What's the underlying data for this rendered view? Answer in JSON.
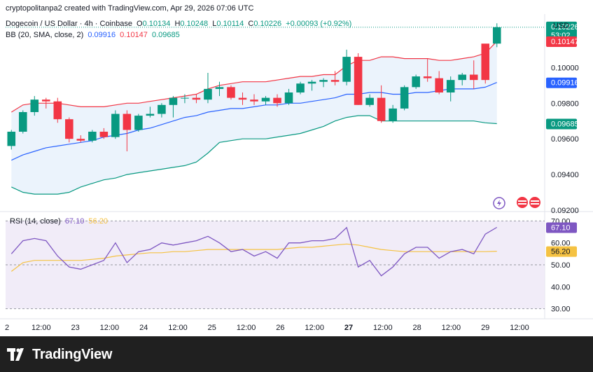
{
  "header": {
    "attribution": "cryptopolitanpa2 created with TradingView.com, Apr 29, 2026 07:06 UTC"
  },
  "symbol": {
    "name": "Dogecoin / US Dollar · 4h · Coinbase",
    "open_label": "O",
    "open": "0.10134",
    "high_label": "H",
    "high": "0.10248",
    "low_label": "L",
    "low": "0.10114",
    "close_label": "C",
    "close": "0.10226",
    "change": "+0.00093 (+0.92%)"
  },
  "bb_legend": {
    "label": "BB (20, SMA, close, 2)",
    "basis": "0.09916",
    "upper": "0.10147",
    "lower": "0.09685"
  },
  "rsi_legend": {
    "label": "RSI (14, close)",
    "rsi": "67.10",
    "sma": "56.20"
  },
  "currency": "USD",
  "price_tags": {
    "last": "0.10226",
    "countdown": "53:02",
    "upper": "0.10147",
    "basis": "0.09916",
    "lower": "0.09685",
    "rsi": "67.10",
    "rsi_sma": "56.20"
  },
  "brand": {
    "name": "TradingView"
  },
  "colors": {
    "up": "#089981",
    "down": "#f23645",
    "basis": "#2962ff",
    "upper": "#f23645",
    "lower": "#089981",
    "band_fill": "#e3eefb",
    "rsi_line": "#7e57c2",
    "rsi_sma": "#f5c242",
    "rsi_fill": "#ede7f6"
  },
  "chart_data": [
    {
      "type": "candlestick",
      "title": "Dogecoin / US Dollar · 4h · Coinbase",
      "y_ticks": [
        "0.10000",
        "0.09800",
        "0.09600",
        "0.09400",
        "0.09200"
      ],
      "ylim": [
        0.092,
        0.103
      ],
      "x_ticks": [
        "2",
        "12:00",
        "23",
        "12:00",
        "24",
        "12:00",
        "25",
        "12:00",
        "26",
        "12:00",
        "27",
        "12:00",
        "28",
        "12:00",
        "29",
        "12:00"
      ],
      "ohlc": [
        [
          0.0956,
          0.0965,
          0.0954,
          0.0964
        ],
        [
          0.0964,
          0.0976,
          0.0963,
          0.0975
        ],
        [
          0.0975,
          0.0984,
          0.0973,
          0.0982
        ],
        [
          0.0982,
          0.0983,
          0.0977,
          0.0981
        ],
        [
          0.0981,
          0.0983,
          0.0969,
          0.0971
        ],
        [
          0.0971,
          0.0972,
          0.0958,
          0.096
        ],
        [
          0.096,
          0.0962,
          0.0958,
          0.0959
        ],
        [
          0.0959,
          0.0965,
          0.0958,
          0.0964
        ],
        [
          0.0964,
          0.0966,
          0.096,
          0.0961
        ],
        [
          0.0961,
          0.0976,
          0.096,
          0.0974
        ],
        [
          0.0974,
          0.0976,
          0.0953,
          0.0965
        ],
        [
          0.0965,
          0.0974,
          0.0964,
          0.0973
        ],
        [
          0.0973,
          0.0978,
          0.0972,
          0.0974
        ],
        [
          0.0974,
          0.098,
          0.0972,
          0.0979
        ],
        [
          0.0979,
          0.0984,
          0.0972,
          0.0983
        ],
        [
          0.0983,
          0.0985,
          0.098,
          0.0983
        ],
        [
          0.0983,
          0.0985,
          0.098,
          0.0982
        ],
        [
          0.0982,
          0.0997,
          0.098,
          0.0988
        ],
        [
          0.0988,
          0.0992,
          0.0984,
          0.0989
        ],
        [
          0.0989,
          0.099,
          0.0982,
          0.0983
        ],
        [
          0.0983,
          0.0986,
          0.0979,
          0.0982
        ],
        [
          0.0982,
          0.0985,
          0.0979,
          0.0981
        ],
        [
          0.0981,
          0.0984,
          0.0979,
          0.0983
        ],
        [
          0.0983,
          0.0985,
          0.0978,
          0.098
        ],
        [
          0.098,
          0.0988,
          0.0979,
          0.0986
        ],
        [
          0.0986,
          0.0992,
          0.0985,
          0.0991
        ],
        [
          0.0991,
          0.0993,
          0.0987,
          0.0992
        ],
        [
          0.0992,
          0.0994,
          0.0989,
          0.0993
        ],
        [
          0.0993,
          0.0998,
          0.099,
          0.0992
        ],
        [
          0.0992,
          0.101,
          0.099,
          0.1006
        ],
        [
          0.1006,
          0.1008,
          0.0979,
          0.0979
        ],
        [
          0.0979,
          0.0985,
          0.0978,
          0.0983
        ],
        [
          0.0983,
          0.099,
          0.0969,
          0.097
        ],
        [
          0.097,
          0.0979,
          0.0969,
          0.0977
        ],
        [
          0.0977,
          0.099,
          0.0976,
          0.0989
        ],
        [
          0.0989,
          0.0996,
          0.0988,
          0.0995
        ],
        [
          0.0995,
          0.1005,
          0.0992,
          0.0994
        ],
        [
          0.0994,
          0.0998,
          0.0985,
          0.0986
        ],
        [
          0.0986,
          0.0995,
          0.0981,
          0.0993
        ],
        [
          0.0993,
          0.0997,
          0.099,
          0.0996
        ],
        [
          0.0996,
          0.1004,
          0.0988,
          0.0993
        ],
        [
          0.10134,
          0.1013,
          0.0991,
          0.0993
        ],
        [
          0.10134,
          0.10248,
          0.10114,
          0.10226
        ]
      ],
      "bb_upper": [
        0.0975,
        0.0979,
        0.098,
        0.098,
        0.098,
        0.0979,
        0.0978,
        0.0978,
        0.0978,
        0.0979,
        0.098,
        0.098,
        0.0981,
        0.0982,
        0.0983,
        0.0984,
        0.0985,
        0.0988,
        0.099,
        0.0991,
        0.0992,
        0.0992,
        0.0992,
        0.0993,
        0.0994,
        0.0995,
        0.0995,
        0.0996,
        0.0996,
        0.1001,
        0.1004,
        0.1004,
        0.1006,
        0.1006,
        0.1005,
        0.1005,
        0.1005,
        0.1004,
        0.1004,
        0.1005,
        0.1006,
        0.1008,
        0.10147
      ],
      "bb_basis": [
        0.0948,
        0.0951,
        0.0953,
        0.0955,
        0.0956,
        0.0957,
        0.0958,
        0.0959,
        0.0961,
        0.0962,
        0.0963,
        0.0965,
        0.0966,
        0.0968,
        0.097,
        0.0972,
        0.0973,
        0.0975,
        0.0976,
        0.0977,
        0.0977,
        0.0978,
        0.0979,
        0.0979,
        0.098,
        0.098,
        0.0981,
        0.0982,
        0.0983,
        0.0985,
        0.0985,
        0.0986,
        0.0986,
        0.0985,
        0.0985,
        0.0986,
        0.0986,
        0.0987,
        0.0988,
        0.0988,
        0.0988,
        0.0989,
        0.09916
      ],
      "bb_lower": [
        0.0933,
        0.093,
        0.0929,
        0.0929,
        0.0929,
        0.093,
        0.0933,
        0.0935,
        0.0937,
        0.0938,
        0.094,
        0.0941,
        0.0942,
        0.0943,
        0.0944,
        0.0945,
        0.0947,
        0.0952,
        0.0958,
        0.0959,
        0.096,
        0.096,
        0.096,
        0.0961,
        0.0962,
        0.0963,
        0.0965,
        0.0967,
        0.097,
        0.0972,
        0.0973,
        0.0973,
        0.097,
        0.097,
        0.097,
        0.097,
        0.097,
        0.097,
        0.097,
        0.097,
        0.097,
        0.0969,
        0.09685
      ]
    },
    {
      "type": "line",
      "title": "RSI (14, close)",
      "y_ticks": [
        "70.00",
        "60.00",
        "50.00",
        "40.00",
        "30.00"
      ],
      "ylim": [
        27,
        73
      ],
      "rsi": [
        55,
        61,
        62,
        61,
        54,
        49,
        48,
        50,
        52,
        60,
        51,
        56,
        57,
        60,
        59,
        60,
        61,
        63,
        60,
        56,
        57,
        54,
        56,
        53,
        60,
        60,
        61,
        61,
        62,
        67,
        49,
        52,
        45,
        49,
        55,
        58,
        58,
        53,
        56,
        57,
        55,
        64,
        67.1
      ],
      "rsi_sma": [
        47,
        51,
        52,
        52,
        52,
        52,
        52,
        52.5,
        53,
        54,
        54.5,
        55,
        55.5,
        55.5,
        56,
        56,
        56.5,
        57,
        57,
        57,
        57,
        57,
        57,
        57,
        57.5,
        58,
        58,
        58.5,
        59,
        59.5,
        59,
        58,
        57,
        56.5,
        56,
        56,
        56,
        56,
        56,
        56,
        56,
        56,
        56.2
      ]
    }
  ]
}
